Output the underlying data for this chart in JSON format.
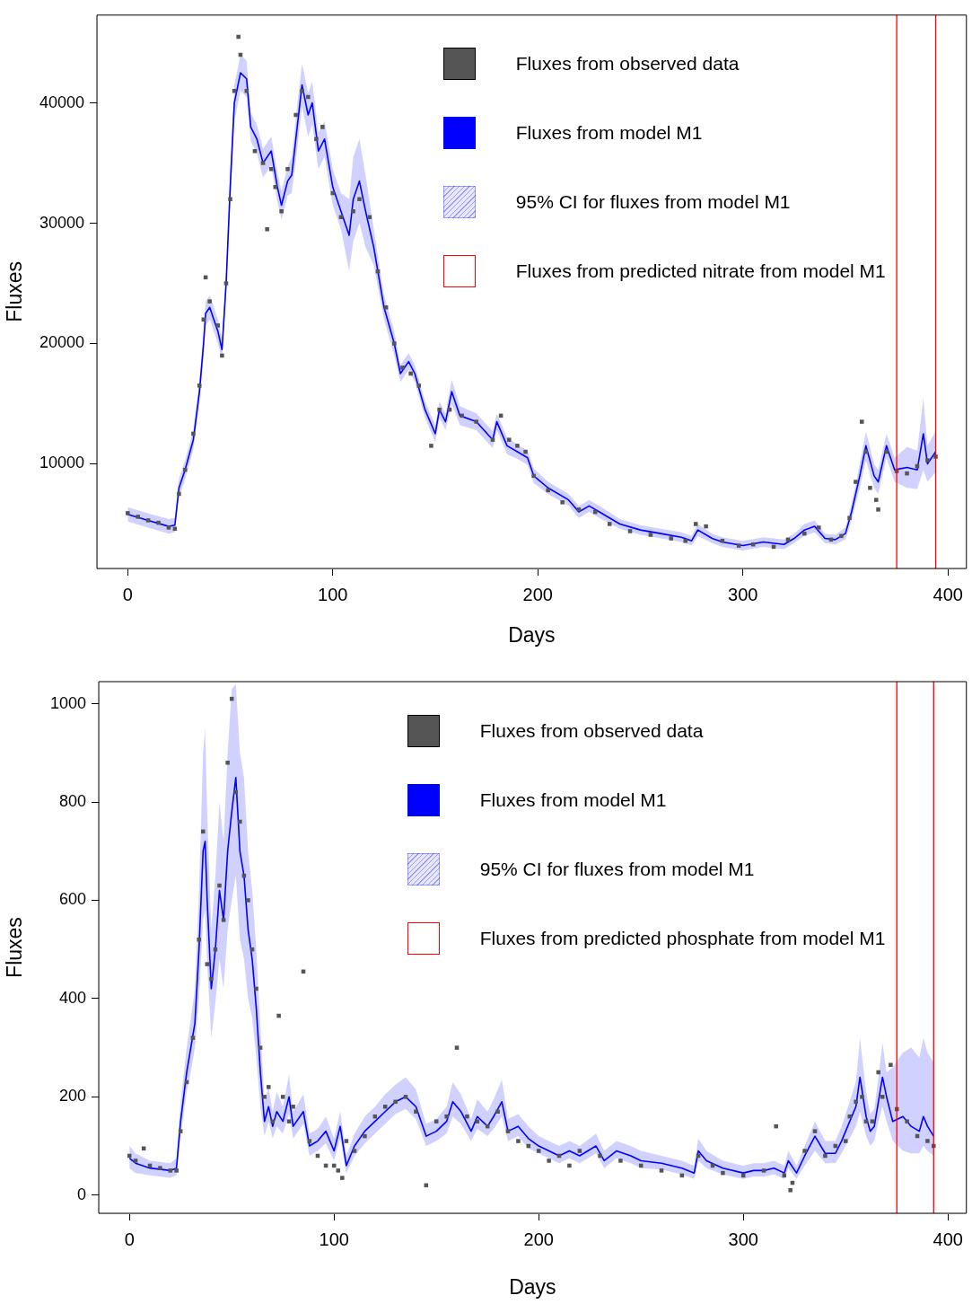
{
  "chart_data": [
    {
      "type": "line",
      "xlabel": "Days",
      "ylabel": "Fluxes",
      "xlim": [
        -15,
        409
      ],
      "xticks": [
        0,
        100,
        200,
        300,
        400
      ],
      "ylim": [
        1300,
        47300
      ],
      "yticks": [
        10000,
        20000,
        30000,
        40000
      ],
      "legend": "top right",
      "series": [
        {
          "name": "Fluxes from observed data",
          "type": "scatter",
          "marker": "square",
          "color": "#555555",
          "x": [
            0,
            5,
            10,
            15,
            20,
            23,
            25,
            28,
            32,
            35,
            37,
            38,
            40,
            44,
            46,
            48,
            50,
            52,
            54,
            55,
            58,
            62,
            66,
            68,
            70,
            72,
            75,
            78,
            82,
            85,
            88,
            92,
            95,
            100,
            104,
            110,
            113,
            118,
            122,
            126,
            130,
            134,
            138,
            142,
            148,
            152,
            157,
            163,
            170,
            178,
            182,
            186,
            190,
            194,
            198,
            205,
            212,
            220,
            228,
            235,
            245,
            255,
            265,
            272,
            277,
            282,
            290,
            298,
            305,
            315,
            322,
            330,
            337,
            343,
            348,
            352,
            355,
            358,
            360,
            362,
            365,
            366,
            370,
            375,
            380,
            385,
            390,
            394
          ],
          "values": [
            5900,
            5600,
            5300,
            5100,
            4700,
            4600,
            7500,
            9500,
            12500,
            16500,
            22000,
            25500,
            23500,
            21500,
            19000,
            25000,
            32000,
            41000,
            45500,
            44000,
            41000,
            36000,
            35000,
            29500,
            34500,
            33000,
            31000,
            34500,
            39000,
            41000,
            40500,
            37000,
            38000,
            32500,
            30500,
            31000,
            32000,
            30500,
            26000,
            23000,
            20000,
            18000,
            17500,
            16500,
            11500,
            14500,
            14500,
            14000,
            13500,
            12000,
            14000,
            12000,
            11500,
            11000,
            9000,
            7800,
            6800,
            6200,
            6000,
            5000,
            4400,
            4100,
            3800,
            3600,
            5000,
            4800,
            3600,
            3200,
            3300,
            3100,
            3700,
            4200,
            4700,
            3700,
            4000,
            5500,
            8500,
            13500,
            11000,
            8000,
            7000,
            6200,
            11000,
            9400,
            9200,
            9800,
            10300,
            10600
          ]
        },
        {
          "name": "Fluxes from model M1",
          "color": "#0000ff",
          "x": [
            0,
            10,
            20,
            23,
            25,
            28,
            32,
            35,
            37,
            38,
            40,
            42,
            44,
            46,
            48,
            50,
            52,
            55,
            58,
            60,
            63,
            66,
            70,
            73,
            75,
            78,
            80,
            82,
            85,
            88,
            90,
            93,
            96,
            100,
            104,
            108,
            110,
            113,
            116,
            120,
            125,
            130,
            133,
            137,
            140,
            145,
            150,
            152,
            155,
            158,
            162,
            170,
            178,
            180,
            185,
            190,
            195,
            198,
            205,
            215,
            220,
            225,
            230,
            240,
            250,
            260,
            270,
            275,
            278,
            285,
            290,
            300,
            310,
            320,
            325,
            330,
            335,
            340,
            345,
            350,
            353,
            357,
            360,
            364,
            366,
            370,
            374,
            380,
            385,
            388,
            390,
            394
          ],
          "values": [
            5800,
            5300,
            4800,
            4900,
            8000,
            9500,
            12000,
            16000,
            20000,
            22500,
            23000,
            22000,
            21000,
            19500,
            25000,
            33000,
            40000,
            42500,
            42000,
            38000,
            37000,
            35000,
            36000,
            33000,
            31500,
            33500,
            34000,
            37000,
            41500,
            39000,
            40000,
            36000,
            37000,
            33000,
            31000,
            29000,
            32000,
            33500,
            31000,
            28000,
            23000,
            20000,
            17500,
            18500,
            17500,
            14500,
            12500,
            14500,
            13500,
            16000,
            14000,
            13500,
            12000,
            13500,
            11500,
            11000,
            10500,
            9000,
            8000,
            7000,
            6000,
            6500,
            6000,
            5000,
            4500,
            4200,
            3900,
            3600,
            4500,
            3800,
            3500,
            3200,
            3500,
            3300,
            3800,
            4500,
            4800,
            3800,
            3700,
            4200,
            6000,
            9000,
            11500,
            9000,
            8500,
            11500,
            9500,
            9700,
            9500,
            12500,
            10000,
            11000
          ],
          "lower": [
            5200,
            4700,
            4200,
            4300,
            7200,
            8700,
            11200,
            15000,
            19000,
            21500,
            22000,
            21000,
            20000,
            18700,
            24000,
            31500,
            38500,
            41000,
            40500,
            36800,
            35800,
            33800,
            34800,
            31800,
            30300,
            32300,
            32500,
            35200,
            39700,
            37200,
            38200,
            34500,
            35500,
            31500,
            29500,
            26000,
            28500,
            30000,
            28000,
            26500,
            22000,
            19000,
            16800,
            17800,
            16800,
            13800,
            11800,
            13800,
            12800,
            15000,
            13200,
            12800,
            11300,
            12800,
            10800,
            10400,
            9900,
            8400,
            7500,
            6500,
            5500,
            6000,
            5500,
            4600,
            4100,
            3800,
            3500,
            3200,
            4000,
            3400,
            3100,
            2800,
            3100,
            2900,
            3400,
            4000,
            4300,
            3400,
            3300,
            3700,
            5300,
            8000,
            10300,
            8000,
            7500,
            10500,
            8500,
            8000,
            7900,
            9500,
            8500,
            9300
          ],
          "upper": [
            6400,
            5900,
            5400,
            5500,
            8800,
            10300,
            12800,
            17000,
            21000,
            23500,
            24000,
            23000,
            22000,
            20300,
            26000,
            34500,
            41500,
            44000,
            43500,
            39200,
            38200,
            36200,
            37200,
            34200,
            32700,
            34700,
            35500,
            38800,
            43300,
            40800,
            41800,
            37500,
            38500,
            34500,
            32500,
            32000,
            35500,
            37000,
            34000,
            29500,
            24000,
            21000,
            18200,
            19200,
            18200,
            15200,
            13200,
            15200,
            14200,
            17000,
            14800,
            14200,
            12700,
            14200,
            12200,
            11600,
            11100,
            9600,
            8500,
            7500,
            6500,
            7000,
            6500,
            5400,
            4900,
            4600,
            4300,
            4000,
            5000,
            4200,
            3900,
            3600,
            3900,
            3700,
            4200,
            5000,
            5300,
            4200,
            4100,
            4700,
            6700,
            10000,
            12700,
            10000,
            9500,
            12500,
            10500,
            11400,
            11100,
            15500,
            11500,
            12700
          ]
        }
      ],
      "annotations": [
        "95% CI for fluxes from model M1"
      ],
      "ref_lines": [
        {
          "axis": "x",
          "value": 375,
          "label": "Fluxes from predicted nitrate from model M1",
          "color": "#ff0000"
        },
        {
          "axis": "x",
          "value": 394,
          "color": "#ff0000"
        }
      ]
    },
    {
      "type": "line",
      "xlabel": "Days",
      "ylabel": "Fluxes",
      "xlim": [
        -15,
        409
      ],
      "xticks": [
        0,
        100,
        200,
        300,
        400
      ],
      "ylim": [
        -37,
        1045
      ],
      "yticks": [
        0,
        200,
        400,
        600,
        800,
        1000
      ],
      "legend": "top right",
      "series": [
        {
          "name": "Fluxes from observed data",
          "type": "scatter",
          "marker": "square",
          "color": "#555555",
          "x": [
            0,
            3,
            7,
            10,
            15,
            20,
            23,
            25,
            28,
            31,
            34,
            36,
            38,
            40,
            42,
            44,
            46,
            48,
            50,
            52,
            54,
            56,
            58,
            60,
            62,
            64,
            66,
            68,
            70,
            73,
            75,
            78,
            80,
            85,
            88,
            92,
            96,
            100,
            102,
            104,
            106,
            110,
            115,
            120,
            125,
            130,
            135,
            140,
            145,
            150,
            155,
            160,
            165,
            170,
            175,
            180,
            185,
            190,
            195,
            200,
            205,
            210,
            215,
            220,
            230,
            240,
            250,
            260,
            270,
            278,
            285,
            290,
            300,
            310,
            316,
            320,
            323,
            324,
            330,
            335,
            340,
            345,
            350,
            352,
            355,
            358,
            360,
            363,
            366,
            368,
            372,
            375,
            380,
            385,
            390,
            393
          ],
          "values": [
            80,
            70,
            95,
            60,
            55,
            50,
            50,
            130,
            230,
            320,
            520,
            740,
            470,
            440,
            500,
            630,
            560,
            880,
            1010,
            820,
            760,
            650,
            600,
            500,
            420,
            300,
            200,
            220,
            150,
            365,
            200,
            150,
            180,
            455,
            110,
            80,
            60,
            60,
            50,
            35,
            110,
            90,
            120,
            160,
            180,
            190,
            200,
            170,
            20,
            150,
            160,
            300,
            160,
            150,
            140,
            170,
            130,
            110,
            100,
            90,
            70,
            80,
            60,
            90,
            80,
            70,
            60,
            50,
            40,
            80,
            60,
            45,
            40,
            50,
            140,
            40,
            10,
            25,
            90,
            130,
            80,
            100,
            110,
            160,
            190,
            200,
            150,
            150,
            250,
            200,
            265,
            175,
            150,
            120,
            110,
            100
          ]
        },
        {
          "name": "Fluxes from model M1",
          "color": "#0000ff",
          "x": [
            0,
            3,
            10,
            20,
            23,
            25,
            28,
            30,
            32,
            34,
            36,
            37,
            38,
            40,
            42,
            44,
            46,
            48,
            50,
            52,
            54,
            56,
            58,
            60,
            62,
            64,
            66,
            68,
            70,
            72,
            75,
            78,
            80,
            85,
            88,
            92,
            96,
            100,
            103,
            106,
            110,
            115,
            120,
            125,
            130,
            135,
            140,
            145,
            150,
            155,
            158,
            162,
            167,
            170,
            175,
            178,
            182,
            185,
            190,
            195,
            200,
            205,
            210,
            215,
            220,
            228,
            232,
            238,
            245,
            250,
            260,
            270,
            276,
            278,
            282,
            290,
            300,
            305,
            310,
            315,
            320,
            322,
            326,
            330,
            335,
            340,
            345,
            348,
            350,
            355,
            357,
            360,
            362,
            364,
            366,
            368,
            370,
            373,
            378,
            382,
            386,
            388,
            390,
            393
          ],
          "values": [
            75,
            65,
            55,
            50,
            55,
            150,
            250,
            300,
            350,
            500,
            700,
            720,
            600,
            420,
            500,
            620,
            560,
            700,
            780,
            850,
            700,
            650,
            540,
            480,
            380,
            250,
            150,
            180,
            140,
            170,
            150,
            200,
            140,
            170,
            100,
            110,
            130,
            90,
            140,
            60,
            100,
            130,
            150,
            170,
            190,
            200,
            180,
            120,
            130,
            150,
            190,
            170,
            130,
            160,
            140,
            160,
            190,
            130,
            140,
            115,
            100,
            90,
            80,
            90,
            80,
            100,
            70,
            90,
            80,
            70,
            65,
            55,
            45,
            90,
            70,
            55,
            45,
            50,
            50,
            55,
            45,
            70,
            45,
            80,
            120,
            85,
            85,
            110,
            130,
            180,
            240,
            160,
            130,
            140,
            190,
            240,
            200,
            150,
            160,
            140,
            130,
            160,
            140,
            120
          ],
          "lower": [
            55,
            45,
            40,
            35,
            40,
            120,
            210,
            250,
            300,
            400,
            560,
            580,
            470,
            320,
            390,
            480,
            420,
            540,
            600,
            650,
            520,
            480,
            400,
            360,
            280,
            180,
            120,
            150,
            115,
            140,
            125,
            165,
            115,
            145,
            80,
            90,
            105,
            70,
            115,
            45,
            80,
            105,
            125,
            145,
            165,
            175,
            155,
            100,
            110,
            125,
            160,
            145,
            110,
            135,
            120,
            135,
            160,
            110,
            120,
            95,
            85,
            75,
            65,
            75,
            65,
            85,
            55,
            75,
            65,
            55,
            52,
            42,
            33,
            70,
            55,
            42,
            33,
            38,
            38,
            42,
            33,
            55,
            33,
            60,
            90,
            65,
            65,
            85,
            100,
            140,
            170,
            120,
            100,
            110,
            150,
            180,
            150,
            110,
            90,
            85,
            85,
            100,
            90,
            80
          ],
          "upper": [
            100,
            85,
            70,
            65,
            75,
            190,
            300,
            360,
            420,
            620,
            900,
            950,
            780,
            540,
            650,
            800,
            720,
            900,
            1030,
            1040,
            900,
            850,
            700,
            620,
            500,
            340,
            190,
            220,
            170,
            210,
            180,
            245,
            170,
            205,
            125,
            135,
            160,
            115,
            170,
            80,
            125,
            160,
            180,
            205,
            225,
            240,
            215,
            145,
            155,
            180,
            230,
            205,
            155,
            195,
            170,
            195,
            235,
            155,
            165,
            140,
            120,
            110,
            100,
            110,
            100,
            125,
            90,
            110,
            100,
            90,
            80,
            70,
            60,
            115,
            90,
            70,
            60,
            65,
            65,
            70,
            60,
            90,
            60,
            100,
            150,
            110,
            110,
            140,
            165,
            230,
            320,
            210,
            165,
            175,
            240,
            310,
            250,
            260,
            290,
            300,
            280,
            320,
            290,
            270
          ]
        }
      ],
      "annotations": [
        "95% CI for fluxes from model M1"
      ],
      "ref_lines": [
        {
          "axis": "x",
          "value": 375,
          "label": "Fluxes from predicted phosphate from model M1",
          "color": "#ff0000"
        },
        {
          "axis": "x",
          "value": 393,
          "color": "#ff0000"
        }
      ]
    }
  ]
}
